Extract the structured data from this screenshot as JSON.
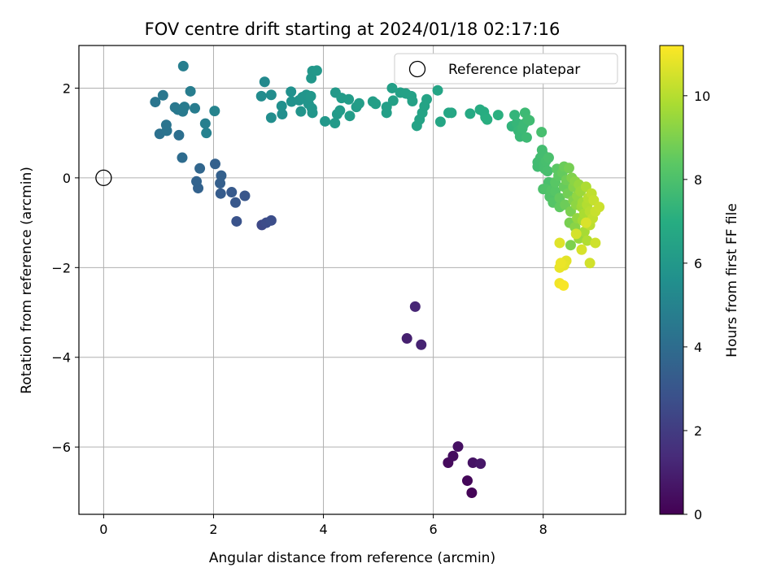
{
  "chart_data": {
    "type": "scatter",
    "title": "FOV centre drift starting at 2024/01/18 02:17:16",
    "xlabel": "Angular distance from reference (arcmin)",
    "ylabel": "Rotation from reference (arcmin)",
    "xlim": [
      -0.45,
      9.5
    ],
    "ylim": [
      -7.5,
      2.95
    ],
    "xticks": [
      0,
      2,
      4,
      6,
      8
    ],
    "xtick_labels": [
      "0",
      "2",
      "4",
      "6",
      "8"
    ],
    "yticks": [
      -6,
      -4,
      -2,
      0,
      2
    ],
    "ytick_labels": [
      "−6",
      "−4",
      "−2",
      "0",
      "2"
    ],
    "grid": true,
    "legend": {
      "position": "top-right",
      "entries": [
        {
          "label": "Reference platepar",
          "marker": "open-circle"
        }
      ]
    },
    "reference_point": {
      "x": 0,
      "y": 0
    },
    "colorbar": {
      "label": "Hours from first FF file",
      "colormap": "viridis",
      "range": [
        0,
        11.2
      ],
      "ticks": [
        0,
        2,
        4,
        6,
        8,
        10
      ],
      "tick_labels": [
        "0",
        "2",
        "4",
        "6",
        "8",
        "10"
      ]
    },
    "points": [
      {
        "x": 6.7,
        "y": -7.02,
        "c": 0.1
      },
      {
        "x": 6.62,
        "y": -6.75,
        "c": 0.2
      },
      {
        "x": 6.27,
        "y": -6.35,
        "c": 0.3
      },
      {
        "x": 6.36,
        "y": -6.2,
        "c": 0.4
      },
      {
        "x": 6.45,
        "y": -5.99,
        "c": 0.5
      },
      {
        "x": 6.72,
        "y": -6.35,
        "c": 0.6
      },
      {
        "x": 6.86,
        "y": -6.37,
        "c": 0.7
      },
      {
        "x": 5.52,
        "y": -3.58,
        "c": 1.0
      },
      {
        "x": 5.78,
        "y": -3.72,
        "c": 1.1
      },
      {
        "x": 5.67,
        "y": -2.87,
        "c": 1.2
      },
      {
        "x": 2.88,
        "y": -1.05,
        "c": 2.5
      },
      {
        "x": 2.96,
        "y": -1.0,
        "c": 2.6
      },
      {
        "x": 3.05,
        "y": -0.95,
        "c": 2.7
      },
      {
        "x": 2.42,
        "y": -0.97,
        "c": 2.9
      },
      {
        "x": 2.57,
        "y": -0.4,
        "c": 3.0
      },
      {
        "x": 2.4,
        "y": -0.55,
        "c": 3.1
      },
      {
        "x": 2.33,
        "y": -0.32,
        "c": 3.2
      },
      {
        "x": 2.13,
        "y": -0.35,
        "c": 3.3
      },
      {
        "x": 2.12,
        "y": -0.12,
        "c": 3.4
      },
      {
        "x": 2.14,
        "y": 0.05,
        "c": 3.45
      },
      {
        "x": 2.03,
        "y": 0.31,
        "c": 3.5
      },
      {
        "x": 1.72,
        "y": -0.23,
        "c": 3.55
      },
      {
        "x": 1.69,
        "y": -0.08,
        "c": 3.6
      },
      {
        "x": 1.75,
        "y": 0.21,
        "c": 3.7
      },
      {
        "x": 1.43,
        "y": 0.45,
        "c": 4.0
      },
      {
        "x": 1.37,
        "y": 0.95,
        "c": 4.1
      },
      {
        "x": 1.02,
        "y": 0.98,
        "c": 4.2
      },
      {
        "x": 1.15,
        "y": 1.05,
        "c": 4.3
      },
      {
        "x": 1.14,
        "y": 1.18,
        "c": 4.35
      },
      {
        "x": 0.94,
        "y": 1.69,
        "c": 4.4
      },
      {
        "x": 1.08,
        "y": 1.84,
        "c": 4.45
      },
      {
        "x": 1.3,
        "y": 1.57,
        "c": 4.5
      },
      {
        "x": 1.35,
        "y": 1.52,
        "c": 4.55
      },
      {
        "x": 1.44,
        "y": 1.48,
        "c": 4.6
      },
      {
        "x": 1.47,
        "y": 1.58,
        "c": 4.65
      },
      {
        "x": 1.66,
        "y": 1.55,
        "c": 4.7
      },
      {
        "x": 1.58,
        "y": 1.93,
        "c": 4.75
      },
      {
        "x": 1.45,
        "y": 2.49,
        "c": 4.8
      },
      {
        "x": 1.85,
        "y": 1.21,
        "c": 4.85
      },
      {
        "x": 1.87,
        "y": 1.0,
        "c": 4.9
      },
      {
        "x": 2.02,
        "y": 1.49,
        "c": 5.0
      },
      {
        "x": 2.93,
        "y": 2.14,
        "c": 5.3
      },
      {
        "x": 2.87,
        "y": 1.82,
        "c": 5.4
      },
      {
        "x": 3.05,
        "y": 1.85,
        "c": 5.45
      },
      {
        "x": 3.05,
        "y": 1.34,
        "c": 5.5
      },
      {
        "x": 3.25,
        "y": 1.42,
        "c": 5.55
      },
      {
        "x": 3.24,
        "y": 1.6,
        "c": 5.6
      },
      {
        "x": 3.41,
        "y": 1.92,
        "c": 5.65
      },
      {
        "x": 3.42,
        "y": 1.7,
        "c": 5.7
      },
      {
        "x": 3.56,
        "y": 1.73,
        "c": 5.75
      },
      {
        "x": 3.59,
        "y": 1.48,
        "c": 5.8
      },
      {
        "x": 3.62,
        "y": 1.8,
        "c": 5.82
      },
      {
        "x": 3.69,
        "y": 1.85,
        "c": 5.84
      },
      {
        "x": 3.73,
        "y": 1.65,
        "c": 5.86
      },
      {
        "x": 3.79,
        "y": 1.55,
        "c": 5.88
      },
      {
        "x": 3.8,
        "y": 1.45,
        "c": 5.9
      },
      {
        "x": 3.77,
        "y": 1.82,
        "c": 5.92
      },
      {
        "x": 3.78,
        "y": 2.22,
        "c": 5.94
      },
      {
        "x": 3.8,
        "y": 2.38,
        "c": 5.96
      },
      {
        "x": 3.88,
        "y": 2.39,
        "c": 5.98
      },
      {
        "x": 4.03,
        "y": 1.26,
        "c": 6.0
      },
      {
        "x": 4.22,
        "y": 1.9,
        "c": 6.05
      },
      {
        "x": 4.21,
        "y": 1.22,
        "c": 6.08
      },
      {
        "x": 4.25,
        "y": 1.42,
        "c": 6.1
      },
      {
        "x": 4.3,
        "y": 1.5,
        "c": 6.12
      },
      {
        "x": 4.33,
        "y": 1.78,
        "c": 6.14
      },
      {
        "x": 4.46,
        "y": 1.75,
        "c": 6.16
      },
      {
        "x": 4.48,
        "y": 1.38,
        "c": 6.18
      },
      {
        "x": 4.6,
        "y": 1.58,
        "c": 6.2
      },
      {
        "x": 4.65,
        "y": 1.66,
        "c": 6.22
      },
      {
        "x": 4.9,
        "y": 1.7,
        "c": 6.25
      },
      {
        "x": 4.95,
        "y": 1.65,
        "c": 6.27
      },
      {
        "x": 5.15,
        "y": 1.45,
        "c": 6.3
      },
      {
        "x": 5.15,
        "y": 1.58,
        "c": 6.32
      },
      {
        "x": 5.25,
        "y": 2.0,
        "c": 6.34
      },
      {
        "x": 5.27,
        "y": 1.72,
        "c": 6.36
      },
      {
        "x": 5.4,
        "y": 1.9,
        "c": 6.38
      },
      {
        "x": 5.5,
        "y": 1.88,
        "c": 6.4
      },
      {
        "x": 5.6,
        "y": 1.82,
        "c": 6.42
      },
      {
        "x": 5.62,
        "y": 1.71,
        "c": 6.44
      },
      {
        "x": 5.7,
        "y": 1.16,
        "c": 6.46
      },
      {
        "x": 5.75,
        "y": 1.3,
        "c": 6.48
      },
      {
        "x": 5.8,
        "y": 1.45,
        "c": 6.5
      },
      {
        "x": 5.84,
        "y": 1.6,
        "c": 6.52
      },
      {
        "x": 5.88,
        "y": 1.75,
        "c": 6.54
      },
      {
        "x": 6.08,
        "y": 1.95,
        "c": 6.56
      },
      {
        "x": 6.13,
        "y": 1.25,
        "c": 6.6
      },
      {
        "x": 6.28,
        "y": 1.45,
        "c": 6.64
      },
      {
        "x": 6.33,
        "y": 1.45,
        "c": 6.68
      },
      {
        "x": 6.67,
        "y": 1.43,
        "c": 6.8
      },
      {
        "x": 6.85,
        "y": 1.52,
        "c": 6.9
      },
      {
        "x": 6.92,
        "y": 1.47,
        "c": 6.95
      },
      {
        "x": 6.95,
        "y": 1.35,
        "c": 7.0
      },
      {
        "x": 6.98,
        "y": 1.3,
        "c": 7.05
      },
      {
        "x": 7.18,
        "y": 1.4,
        "c": 7.1
      },
      {
        "x": 7.43,
        "y": 1.15,
        "c": 7.3
      },
      {
        "x": 7.48,
        "y": 1.4,
        "c": 7.35
      },
      {
        "x": 7.52,
        "y": 1.22,
        "c": 7.4
      },
      {
        "x": 7.55,
        "y": 1.05,
        "c": 7.45
      },
      {
        "x": 7.58,
        "y": 0.92,
        "c": 7.5
      },
      {
        "x": 7.62,
        "y": 1.1,
        "c": 7.55
      },
      {
        "x": 7.65,
        "y": 1.2,
        "c": 7.58
      },
      {
        "x": 7.67,
        "y": 1.45,
        "c": 7.6
      },
      {
        "x": 7.7,
        "y": 0.9,
        "c": 7.62
      },
      {
        "x": 7.72,
        "y": 1.3,
        "c": 7.65
      },
      {
        "x": 7.75,
        "y": 1.28,
        "c": 7.68
      },
      {
        "x": 7.9,
        "y": 0.35,
        "c": 7.7
      },
      {
        "x": 7.9,
        "y": 0.25,
        "c": 7.72
      },
      {
        "x": 7.95,
        "y": 0.45,
        "c": 7.75
      },
      {
        "x": 7.98,
        "y": 0.62,
        "c": 7.78
      },
      {
        "x": 8.0,
        "y": 0.52,
        "c": 7.8
      },
      {
        "x": 8.02,
        "y": 0.3,
        "c": 7.82
      },
      {
        "x": 8.03,
        "y": 0.2,
        "c": 7.84
      },
      {
        "x": 7.97,
        "y": 1.02,
        "c": 7.86
      },
      {
        "x": 8.05,
        "y": 0.38,
        "c": 7.88
      },
      {
        "x": 8.08,
        "y": 0.15,
        "c": 7.9
      },
      {
        "x": 8.1,
        "y": -0.1,
        "c": 7.92
      },
      {
        "x": 8.1,
        "y": 0.45,
        "c": 7.94
      },
      {
        "x": 8.0,
        "y": -0.25,
        "c": 8.0
      },
      {
        "x": 8.05,
        "y": -0.25,
        "c": 8.05
      },
      {
        "x": 8.12,
        "y": -0.42,
        "c": 8.1
      },
      {
        "x": 8.15,
        "y": -0.28,
        "c": 8.15
      },
      {
        "x": 8.18,
        "y": -0.55,
        "c": 8.2
      },
      {
        "x": 8.22,
        "y": -0.3,
        "c": 8.25
      },
      {
        "x": 8.22,
        "y": -0.1,
        "c": 8.3
      },
      {
        "x": 8.25,
        "y": 0.2,
        "c": 8.35
      },
      {
        "x": 8.28,
        "y": 0.05,
        "c": 8.4
      },
      {
        "x": 8.3,
        "y": -0.65,
        "c": 8.45
      },
      {
        "x": 8.3,
        "y": -0.45,
        "c": 8.5
      },
      {
        "x": 8.35,
        "y": 0.12,
        "c": 8.55
      },
      {
        "x": 8.38,
        "y": -0.2,
        "c": 8.6
      },
      {
        "x": 8.38,
        "y": 0.25,
        "c": 8.65
      },
      {
        "x": 8.4,
        "y": -0.6,
        "c": 8.7
      },
      {
        "x": 8.42,
        "y": -0.05,
        "c": 8.75
      },
      {
        "x": 8.45,
        "y": -0.35,
        "c": 8.8
      },
      {
        "x": 8.47,
        "y": 0.22,
        "c": 8.85
      },
      {
        "x": 8.48,
        "y": -1.0,
        "c": 8.9
      },
      {
        "x": 8.5,
        "y": -0.75,
        "c": 8.95
      },
      {
        "x": 8.5,
        "y": -1.5,
        "c": 9.0
      },
      {
        "x": 8.52,
        "y": 0.0,
        "c": 9.05
      },
      {
        "x": 8.55,
        "y": -0.5,
        "c": 9.1
      },
      {
        "x": 8.55,
        "y": -0.2,
        "c": 9.15
      },
      {
        "x": 8.58,
        "y": -1.1,
        "c": 9.2
      },
      {
        "x": 8.58,
        "y": -0.08,
        "c": 9.25
      },
      {
        "x": 8.6,
        "y": -0.6,
        "c": 9.3
      },
      {
        "x": 8.62,
        "y": -0.4,
        "c": 9.35
      },
      {
        "x": 8.62,
        "y": -0.9,
        "c": 9.4
      },
      {
        "x": 8.65,
        "y": -0.15,
        "c": 9.45
      },
      {
        "x": 8.65,
        "y": -1.35,
        "c": 9.5
      },
      {
        "x": 8.68,
        "y": -0.3,
        "c": 9.55
      },
      {
        "x": 8.7,
        "y": -0.65,
        "c": 9.6
      },
      {
        "x": 8.72,
        "y": -0.55,
        "c": 9.65
      },
      {
        "x": 8.72,
        "y": -0.95,
        "c": 9.7
      },
      {
        "x": 8.75,
        "y": -1.2,
        "c": 9.75
      },
      {
        "x": 8.75,
        "y": -0.8,
        "c": 9.8
      },
      {
        "x": 8.78,
        "y": -0.2,
        "c": 9.85
      },
      {
        "x": 8.8,
        "y": -1.4,
        "c": 9.9
      },
      {
        "x": 8.8,
        "y": -0.6,
        "c": 9.95
      },
      {
        "x": 8.82,
        "y": -0.45,
        "c": 10.0
      },
      {
        "x": 8.85,
        "y": -0.75,
        "c": 10.05
      },
      {
        "x": 8.85,
        "y": -1.05,
        "c": 10.1
      },
      {
        "x": 8.88,
        "y": -0.35,
        "c": 10.15
      },
      {
        "x": 8.9,
        "y": -0.9,
        "c": 10.2
      },
      {
        "x": 8.92,
        "y": -0.5,
        "c": 10.25
      },
      {
        "x": 8.95,
        "y": -0.75,
        "c": 10.3
      },
      {
        "x": 9.02,
        "y": -0.65,
        "c": 10.35
      },
      {
        "x": 8.95,
        "y": -1.45,
        "c": 10.4
      },
      {
        "x": 8.85,
        "y": -1.9,
        "c": 10.45
      },
      {
        "x": 8.6,
        "y": -1.25,
        "c": 10.5
      },
      {
        "x": 8.7,
        "y": -1.6,
        "c": 10.55
      },
      {
        "x": 8.78,
        "y": -1.0,
        "c": 10.6
      },
      {
        "x": 8.3,
        "y": -1.45,
        "c": 10.7
      },
      {
        "x": 8.42,
        "y": -1.85,
        "c": 10.75
      },
      {
        "x": 8.38,
        "y": -1.95,
        "c": 10.8
      },
      {
        "x": 8.3,
        "y": -2.0,
        "c": 10.85
      },
      {
        "x": 8.32,
        "y": -1.9,
        "c": 10.9
      },
      {
        "x": 8.3,
        "y": -2.35,
        "c": 11.0
      },
      {
        "x": 8.37,
        "y": -2.4,
        "c": 11.1
      }
    ]
  }
}
